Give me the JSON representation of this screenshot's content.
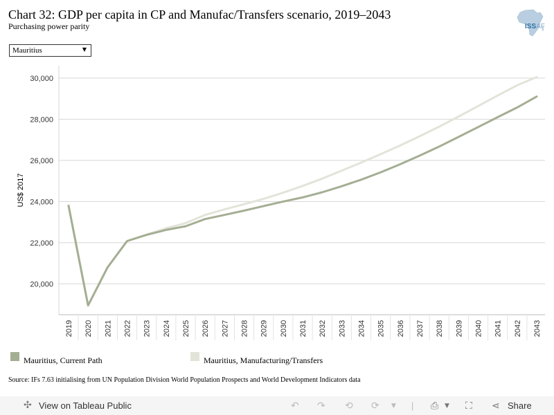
{
  "header": {
    "title": "Chart 32: GDP per capita in CP and Manufac/Transfers scenario, 2019–2043",
    "subtitle": "Purchasing power parity"
  },
  "logo": {
    "text_main": "ISS",
    "text_suffix": "AF"
  },
  "filter": {
    "selected": "Mauritius"
  },
  "chart_data": {
    "type": "line",
    "title": "Chart 32: GDP per capita in CP and Manufac/Transfers scenario, 2019–2043",
    "subtitle": "Purchasing power parity",
    "xlabel": "",
    "ylabel": "US$ 2017",
    "x": [
      "2019",
      "2020",
      "2021",
      "2022",
      "2023",
      "2024",
      "2025",
      "2026",
      "2027",
      "2028",
      "2029",
      "2030",
      "2031",
      "2032",
      "2033",
      "2034",
      "2035",
      "2036",
      "2037",
      "2038",
      "2039",
      "2040",
      "2041",
      "2042",
      "2043"
    ],
    "ylim": [
      18500,
      30600
    ],
    "yticks": [
      20000,
      22000,
      24000,
      26000,
      28000,
      30000
    ],
    "ytick_labels": [
      "20,000",
      "22,000",
      "24,000",
      "26,000",
      "28,000",
      "30,000"
    ],
    "grid": true,
    "legend_position": "bottom",
    "series": [
      {
        "name": "Mauritius, Manufacturing/Transfers",
        "color": "#e2e4d9",
        "values": [
          23800,
          18950,
          20800,
          22080,
          22400,
          22700,
          22950,
          23350,
          23620,
          23870,
          24130,
          24430,
          24760,
          25110,
          25500,
          25890,
          26300,
          26720,
          27170,
          27640,
          28130,
          28640,
          29150,
          29650,
          30050
        ]
      },
      {
        "name": "Mauritius, Current Path",
        "color": "#a4ae93",
        "values": [
          23800,
          18950,
          20800,
          22080,
          22380,
          22620,
          22800,
          23150,
          23350,
          23560,
          23780,
          24000,
          24200,
          24450,
          24740,
          25060,
          25420,
          25810,
          26230,
          26670,
          27140,
          27620,
          28100,
          28570,
          29100
        ]
      }
    ]
  },
  "legend": [
    {
      "label": "Mauritius, Current Path",
      "color": "#a4ae93"
    },
    {
      "label": "Mauritius, Manufacturing/Transfers",
      "color": "#e2e4d9"
    }
  ],
  "source": "Source: IFs 7.63 initialising from UN Population Division World Population Prospects and World Development Indicators data",
  "footer": {
    "view_label": "View on Tableau Public",
    "share_label": "Share"
  }
}
